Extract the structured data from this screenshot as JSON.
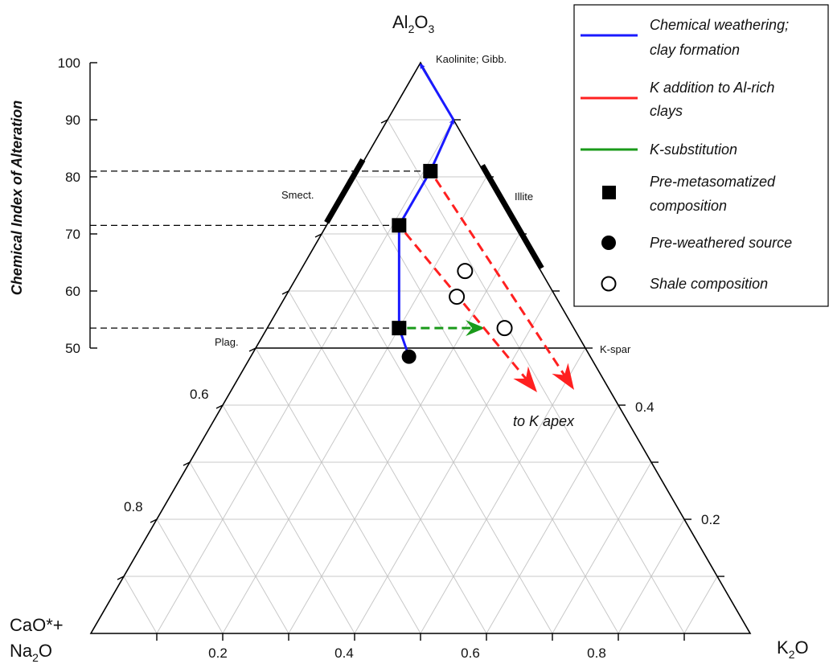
{
  "apices": {
    "top": {
      "main": "Al",
      "sub1": "2",
      "mid": "O",
      "sub2": "3"
    },
    "left_line1": "CaO*+",
    "left_line2": {
      "main": "Na",
      "sub": "2",
      "tail": "O"
    },
    "right": {
      "main": "K",
      "sub": "2",
      "tail": "O"
    }
  },
  "y_axis": {
    "label": "Chemical Index of Alteration",
    "ticks": [
      "100",
      "90",
      "80",
      "70",
      "60",
      "50"
    ]
  },
  "bottom_ticks": [
    "0.2",
    "0.4",
    "0.6",
    "0.8"
  ],
  "left_edge_ticks": [
    "0.6",
    "0.8"
  ],
  "right_edge_ticks": [
    "0.4",
    "0.2"
  ],
  "mineral_labels": {
    "kaolinite": "Kaolinite; Gibb.",
    "smectite": "Smect.",
    "illite": "Illite",
    "plagioclase": "Plag.",
    "kspar": "K-spar"
  },
  "annotation": "to K apex",
  "legend": {
    "items": [
      {
        "symbol": "line",
        "color": "#1a1aff",
        "lines": [
          "Chemical weathering;",
          "clay formation"
        ]
      },
      {
        "symbol": "line",
        "color": "#ff2020",
        "lines": [
          "K addition to Al-rich",
          "clays"
        ]
      },
      {
        "symbol": "line",
        "color": "#1a9a1a",
        "lines": [
          "K-substitution"
        ]
      },
      {
        "symbol": "square",
        "color": "#000000",
        "lines": [
          "Pre-metasomatized",
          "composition"
        ]
      },
      {
        "symbol": "filled-circle",
        "color": "#000000",
        "lines": [
          "Pre-weathered source"
        ]
      },
      {
        "symbol": "open-circle",
        "color": "#000000",
        "lines": [
          "Shale composition"
        ]
      }
    ]
  },
  "chart_data": {
    "type": "ternary",
    "components": [
      "Al2O3",
      "CaO*+Na2O",
      "K2O"
    ],
    "cia_reference_lines": [
      81,
      71.5,
      53.5
    ],
    "feldspar_join_cia": 50,
    "points": {
      "pre_weathered_source": {
        "K2O": 0.24,
        "CIA": 48.5
      },
      "pre_metasomatized": [
        {
          "K2O": 0.2,
          "CIA": 53.5
        },
        {
          "K2O": 0.11,
          "CIA": 71.5
        },
        {
          "K2O": 0.11,
          "CIA": 81
        }
      ],
      "shale": [
        {
          "K2O": 0.36,
          "CIA": 53.5
        },
        {
          "K2O": 0.26,
          "CIA": 59
        },
        {
          "K2O": 0.25,
          "CIA": 63.5
        }
      ]
    },
    "paths": {
      "chemical_weathering": [
        [
          0.24,
          48.5
        ],
        [
          0.2,
          53.5
        ],
        [
          0.11,
          71.5
        ],
        [
          0.11,
          81
        ],
        [
          0.1,
          90
        ],
        [
          0.0,
          100
        ]
      ],
      "k_substitution": {
        "from": [
          0.2,
          53.5
        ],
        "to": [
          0.34,
          53.5
        ]
      },
      "k_addition": [
        {
          "from": [
            0.11,
            71.5
          ],
          "toward": "K apex"
        },
        {
          "from": [
            0.11,
            81
          ],
          "toward": "K apex"
        }
      ]
    },
    "mineral_fields": {
      "smectite_edge_segment": true,
      "illite_edge_segment": true
    }
  }
}
